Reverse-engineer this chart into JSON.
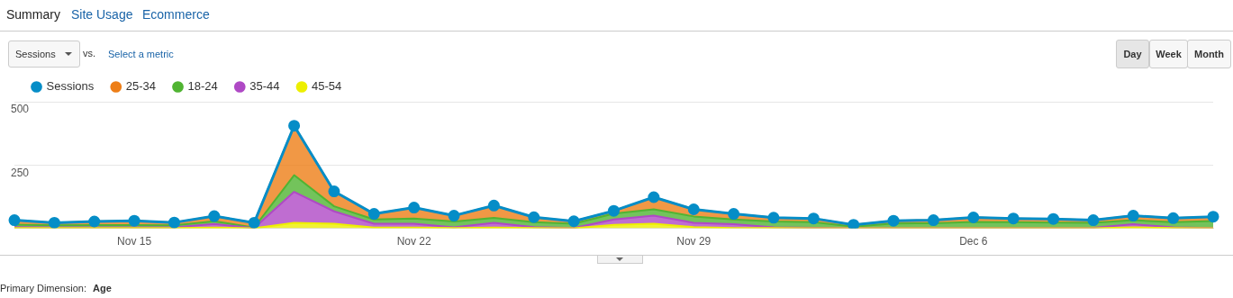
{
  "chart_data": {
    "type": "area",
    "categories": [
      null,
      null,
      null,
      "Nov 15",
      null,
      null,
      null,
      null,
      null,
      null,
      "Nov 22",
      null,
      null,
      null,
      null,
      null,
      null,
      "Nov 29",
      null,
      null,
      null,
      null,
      null,
      null,
      "Dec 6",
      null,
      null,
      null,
      null,
      null,
      null
    ],
    "series": [
      {
        "name": "Sessions",
        "type": "line",
        "marker": "circle",
        "color": "#058dc7",
        "values": [
          32,
          22,
          27,
          30,
          23,
          48,
          22,
          405,
          146,
          57,
          82,
          50,
          90,
          44,
          28,
          69,
          123,
          75,
          57,
          42,
          39,
          14,
          30,
          32,
          43,
          39,
          37,
          32,
          50,
          40,
          46
        ]
      },
      {
        "name": "45-54",
        "color": "#edef00",
        "values": [
          1,
          1,
          1,
          1,
          1,
          3,
          0,
          22,
          18,
          3,
          3,
          1,
          3,
          1,
          0,
          14,
          18,
          5,
          1,
          1,
          0,
          0,
          0,
          0,
          0,
          0,
          0,
          0,
          4,
          1,
          0
        ]
      },
      {
        "name": "35-44",
        "color": "#af49c5",
        "values": [
          4,
          3,
          3,
          3,
          3,
          14,
          1,
          122,
          49,
          15,
          15,
          3,
          19,
          4,
          1,
          21,
          32,
          17,
          15,
          3,
          2,
          1,
          1,
          1,
          1,
          1,
          1,
          2,
          12,
          3,
          1
        ]
      },
      {
        "name": "18-24",
        "color": "#50b432",
        "values": [
          10,
          8,
          9,
          9,
          8,
          11,
          2,
          66,
          20,
          17,
          21,
          23,
          19,
          19,
          17,
          23,
          25,
          25,
          19,
          23,
          22,
          6,
          18,
          19,
          24,
          23,
          22,
          20,
          16,
          20,
          28
        ]
      },
      {
        "name": "25-34",
        "color": "#ed7e17",
        "values": [
          17,
          10,
          14,
          17,
          11,
          20,
          19,
          195,
          59,
          22,
          43,
          23,
          49,
          20,
          10,
          11,
          48,
          28,
          22,
          15,
          15,
          7,
          11,
          12,
          18,
          15,
          14,
          10,
          18,
          16,
          17
        ]
      }
    ],
    "stacked": true,
    "ylim": [
      0,
      500
    ],
    "yticks": [
      {
        "value": 0,
        "label": null
      },
      250,
      500
    ],
    "grid": "y",
    "legend": "top left",
    "annotations": [
      "Summary",
      "Site Usage",
      "Ecommerce",
      "Sessions",
      "vs.",
      "Select a metric",
      "Day",
      "Week",
      "Month",
      "Primary Dimension:",
      "Age"
    ]
  }
}
